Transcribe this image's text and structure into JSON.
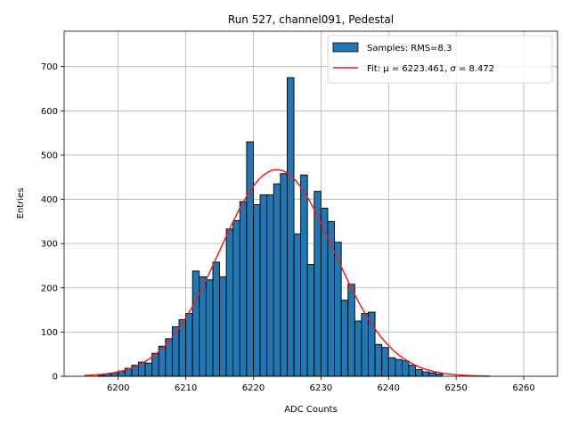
{
  "chart_data": {
    "type": "bar",
    "title": "Run 527, channel091, Pedestal",
    "xlabel": "ADC Counts",
    "ylabel": "Entries",
    "xlim": [
      6192,
      6265
    ],
    "ylim": [
      0,
      780
    ],
    "xticks": [
      6200,
      6210,
      6220,
      6230,
      6240,
      6250,
      6260
    ],
    "yticks": [
      0,
      100,
      200,
      300,
      400,
      500,
      600,
      700
    ],
    "grid": true,
    "legend_position": "top-right",
    "bin_width": 1,
    "histogram": {
      "name": "Samples: RMS=8.3",
      "bin_starts": [
        6197,
        6198,
        6199,
        6200,
        6201,
        6202,
        6203,
        6204,
        6205,
        6206,
        6207,
        6208,
        6209,
        6210,
        6211,
        6212,
        6213,
        6214,
        6215,
        6216,
        6217,
        6218,
        6219,
        6220,
        6221,
        6222,
        6223,
        6224,
        6225,
        6226,
        6227,
        6228,
        6229,
        6230,
        6231,
        6232,
        6233,
        6234,
        6235,
        6236,
        6237,
        6238,
        6239,
        6240,
        6241,
        6242,
        6243,
        6244,
        6245,
        6246,
        6247
      ],
      "counts": [
        2,
        5,
        8,
        12,
        18,
        25,
        32,
        30,
        52,
        68,
        85,
        112,
        128,
        142,
        238,
        225,
        218,
        258,
        225,
        333,
        352,
        395,
        530,
        388,
        410,
        410,
        435,
        458,
        675,
        322,
        455,
        253,
        418,
        380,
        350,
        303,
        172,
        208,
        125,
        142,
        145,
        72,
        65,
        42,
        38,
        35,
        25,
        15,
        10,
        8,
        5
      ]
    },
    "fit": {
      "name": "Fit: μ = 6223.461, σ = 8.472",
      "mu": 6223.461,
      "sigma": 8.472,
      "amplitude": 467,
      "x_range": [
        6195,
        6255
      ]
    },
    "colors": {
      "bar_fill": "#1f77b4",
      "bar_edge": "#000000",
      "fit_line": "#e8211c",
      "grid": "#b0b0b0"
    }
  }
}
